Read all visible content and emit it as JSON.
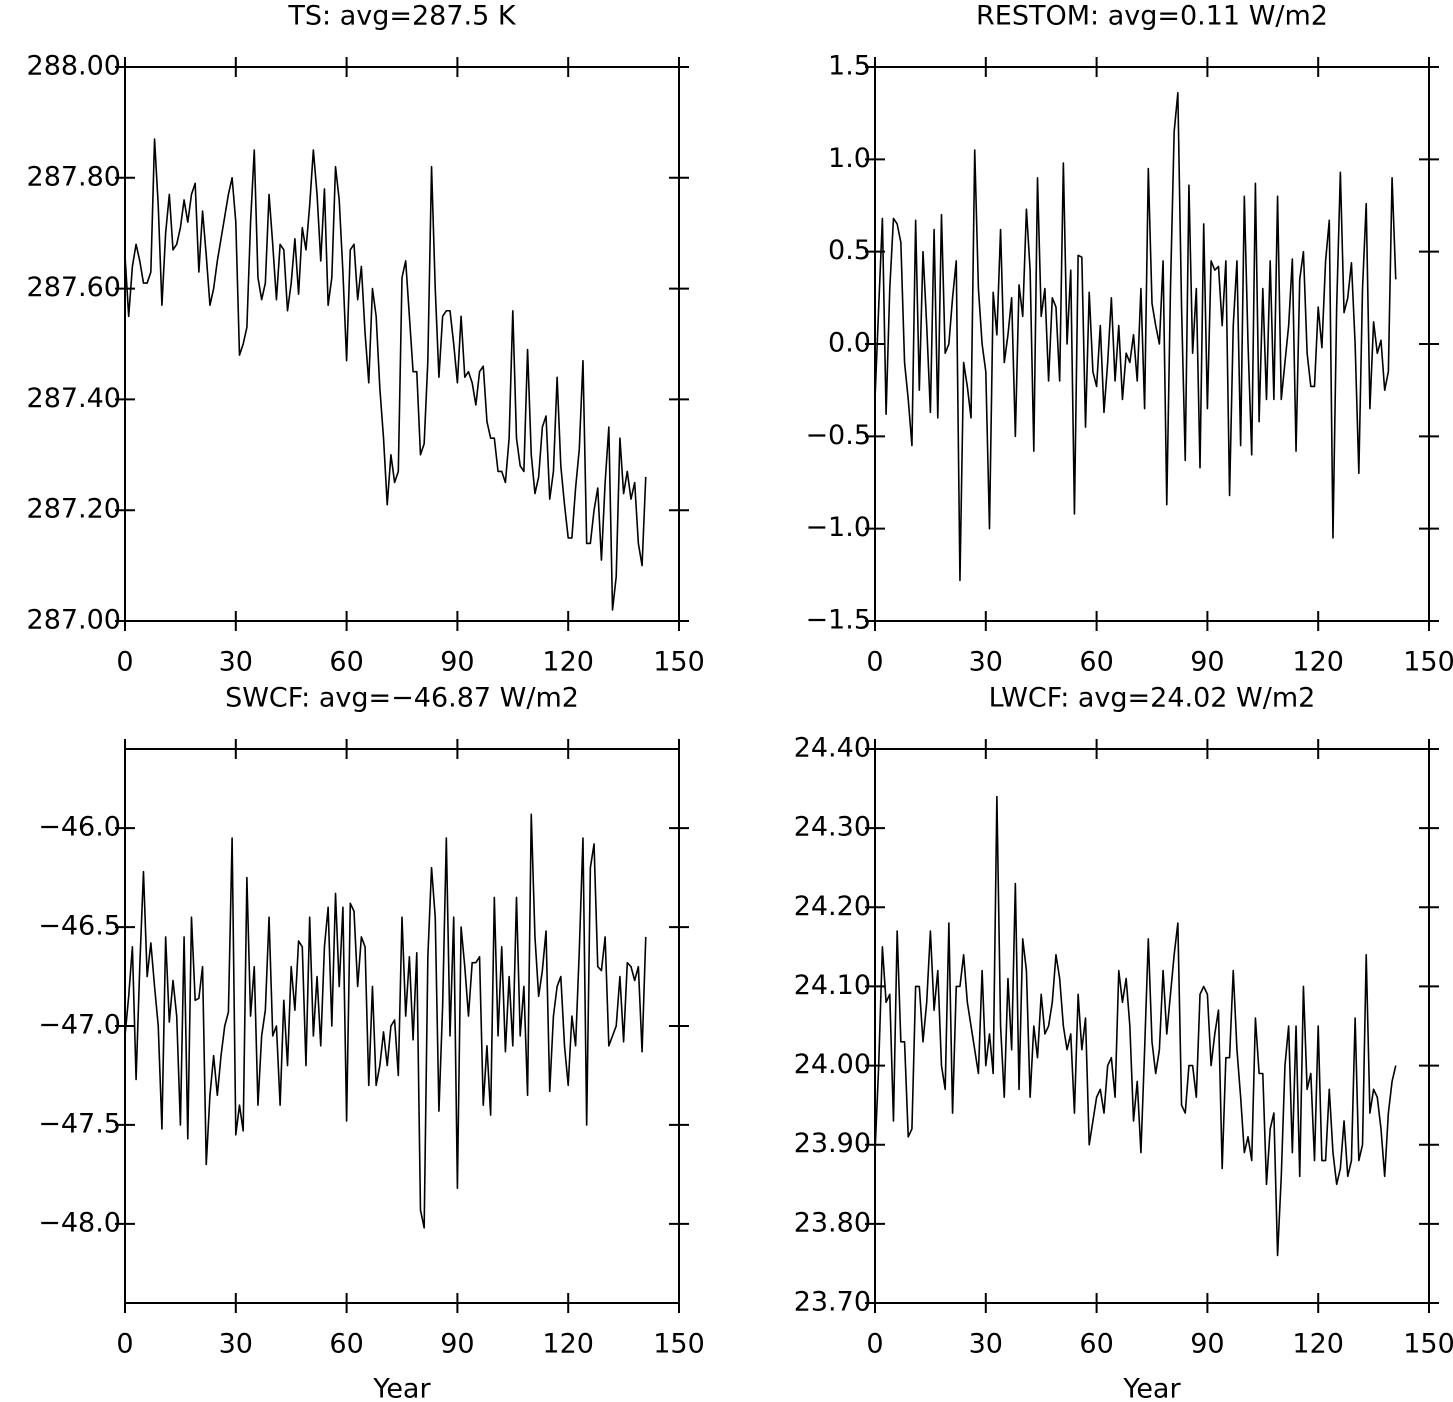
{
  "chart_data": [
    {
      "type": "line",
      "title": "TS: avg=287.5 K",
      "color": "#000000",
      "x": [
        0,
        1,
        2,
        3,
        4,
        5,
        6,
        7,
        8,
        9,
        10,
        11,
        12,
        13,
        14,
        15,
        16,
        17,
        18,
        19,
        20,
        21,
        22,
        23,
        24,
        25,
        26,
        27,
        28,
        29,
        30,
        31,
        32,
        33,
        34,
        35,
        36,
        37,
        38,
        39,
        40,
        41,
        42,
        43,
        44,
        45,
        46,
        47,
        48,
        49,
        50,
        51,
        52,
        53,
        54,
        55,
        56,
        57,
        58,
        59,
        60,
        61,
        62,
        63,
        64,
        65,
        66,
        67,
        68,
        69,
        70,
        71,
        72,
        73,
        74,
        75,
        76,
        77,
        78,
        79,
        80,
        81,
        82,
        83,
        84,
        85,
        86,
        87,
        88,
        89,
        90,
        91,
        92,
        93,
        94,
        95,
        96,
        97,
        98,
        99,
        100,
        101,
        102,
        103,
        104,
        105,
        106,
        107,
        108,
        109,
        110,
        111,
        112,
        113,
        114,
        115,
        116,
        117,
        118,
        119,
        120,
        121,
        122,
        123,
        124,
        125,
        126,
        127,
        128,
        129,
        130,
        131,
        132,
        133,
        134,
        135,
        136,
        137,
        138,
        139,
        140,
        141
      ],
      "values": [
        287.66,
        287.55,
        287.64,
        287.68,
        287.65,
        287.61,
        287.61,
        287.63,
        287.87,
        287.75,
        287.57,
        287.7,
        287.77,
        287.67,
        287.68,
        287.71,
        287.76,
        287.72,
        287.77,
        287.79,
        287.63,
        287.74,
        287.66,
        287.57,
        287.6,
        287.65,
        287.69,
        287.73,
        287.77,
        287.8,
        287.72,
        287.48,
        287.5,
        287.53,
        287.72,
        287.85,
        287.62,
        287.58,
        287.61,
        287.77,
        287.68,
        287.58,
        287.68,
        287.67,
        287.56,
        287.61,
        287.69,
        287.59,
        287.71,
        287.67,
        287.75,
        287.85,
        287.77,
        287.65,
        287.78,
        287.57,
        287.62,
        287.82,
        287.76,
        287.63,
        287.47,
        287.67,
        287.68,
        287.58,
        287.64,
        287.52,
        287.43,
        287.6,
        287.55,
        287.42,
        287.33,
        287.21,
        287.3,
        287.25,
        287.27,
        287.62,
        287.65,
        287.55,
        287.45,
        287.45,
        287.3,
        287.32,
        287.47,
        287.82,
        287.6,
        287.44,
        287.55,
        287.56,
        287.56,
        287.5,
        287.43,
        287.55,
        287.44,
        287.45,
        287.43,
        287.39,
        287.45,
        287.46,
        287.36,
        287.33,
        287.33,
        287.27,
        287.27,
        287.25,
        287.33,
        287.56,
        287.33,
        287.28,
        287.27,
        287.49,
        287.3,
        287.23,
        287.26,
        287.35,
        287.37,
        287.22,
        287.27,
        287.44,
        287.28,
        287.21,
        287.15,
        287.15,
        287.24,
        287.31,
        287.47,
        287.14,
        287.14,
        287.2,
        287.24,
        287.11,
        287.25,
        287.35,
        287.02,
        287.08,
        287.33,
        287.23,
        287.27,
        287.22,
        287.25,
        287.14,
        287.1,
        287.26
      ],
      "xlim": [
        0,
        150
      ],
      "xticks": [
        0,
        30,
        60,
        90,
        120,
        150
      ],
      "ylim": [
        287,
        288
      ],
      "yticks": [
        {
          "value": 287,
          "label": "287.00"
        },
        {
          "value": 287.2,
          "label": "287.20"
        },
        {
          "value": 287.4,
          "label": "287.40"
        },
        {
          "value": 287.6,
          "label": "287.60"
        },
        {
          "value": 287.8,
          "label": "287.80"
        },
        {
          "value": 288,
          "label": "288.00"
        }
      ]
    },
    {
      "type": "line",
      "title": "RESTOM: avg=0.11 W/m2",
      "color": "#000000",
      "x": [
        0,
        1,
        2,
        3,
        4,
        5,
        6,
        7,
        8,
        9,
        10,
        11,
        12,
        13,
        14,
        15,
        16,
        17,
        18,
        19,
        20,
        21,
        22,
        23,
        24,
        25,
        26,
        27,
        28,
        29,
        30,
        31,
        32,
        33,
        34,
        35,
        36,
        37,
        38,
        39,
        40,
        41,
        42,
        43,
        44,
        45,
        46,
        47,
        48,
        49,
        50,
        51,
        52,
        53,
        54,
        55,
        56,
        57,
        58,
        59,
        60,
        61,
        62,
        63,
        64,
        65,
        66,
        67,
        68,
        69,
        70,
        71,
        72,
        73,
        74,
        75,
        76,
        77,
        78,
        79,
        80,
        81,
        82,
        83,
        84,
        85,
        86,
        87,
        88,
        89,
        90,
        91,
        92,
        93,
        94,
        95,
        96,
        97,
        98,
        99,
        100,
        101,
        102,
        103,
        104,
        105,
        106,
        107,
        108,
        109,
        110,
        111,
        112,
        113,
        114,
        115,
        116,
        117,
        118,
        119,
        120,
        121,
        122,
        123,
        124,
        125,
        126,
        127,
        128,
        129,
        130,
        131,
        132,
        133,
        134,
        135,
        136,
        137,
        138,
        139,
        140,
        141
      ],
      "values": [
        -0.3,
        0.2,
        0.68,
        -0.38,
        0.3,
        0.68,
        0.65,
        0.55,
        -0.1,
        -0.3,
        -0.55,
        0.67,
        -0.25,
        0.5,
        0.1,
        -0.37,
        0.62,
        -0.4,
        0.7,
        -0.05,
        0.0,
        0.25,
        0.45,
        -1.28,
        -0.1,
        -0.23,
        -0.4,
        1.05,
        0.3,
        0.0,
        -0.15,
        -1.0,
        0.28,
        0.05,
        0.62,
        -0.1,
        0.05,
        0.25,
        -0.5,
        0.32,
        0.15,
        0.73,
        0.4,
        -0.58,
        0.9,
        0.15,
        0.3,
        -0.2,
        0.25,
        0.2,
        -0.2,
        0.98,
        0.0,
        0.4,
        -0.92,
        0.48,
        0.47,
        -0.45,
        0.28,
        -0.15,
        -0.23,
        0.1,
        -0.37,
        -0.1,
        0.25,
        -0.2,
        0.1,
        -0.3,
        -0.05,
        -0.1,
        0.05,
        -0.2,
        0.3,
        -0.35,
        0.95,
        0.22,
        0.1,
        0.0,
        0.45,
        -0.87,
        0.3,
        1.15,
        1.36,
        0.2,
        -0.63,
        0.86,
        -0.05,
        0.3,
        -0.67,
        0.65,
        -0.35,
        0.45,
        0.4,
        0.42,
        0.1,
        0.45,
        -0.82,
        0.1,
        0.45,
        -0.55,
        0.8,
        0.0,
        -0.6,
        0.87,
        -0.42,
        0.3,
        -0.3,
        0.45,
        -0.3,
        0.8,
        -0.3,
        -0.1,
        0.1,
        0.46,
        -0.58,
        0.35,
        0.5,
        -0.05,
        -0.23,
        -0.23,
        0.2,
        -0.02,
        0.45,
        0.67,
        -1.05,
        0.2,
        0.93,
        0.17,
        0.25,
        0.44,
        0.0,
        -0.7,
        0.3,
        0.76,
        -0.35,
        0.12,
        -0.05,
        0.02,
        -0.25,
        -0.15,
        0.9,
        0.35
      ],
      "xlim": [
        0,
        150
      ],
      "xticks": [
        0,
        30,
        60,
        90,
        120,
        150
      ],
      "ylim": [
        -1.5,
        1.5
      ],
      "yticks": [
        {
          "value": -1.5,
          "label": "−1.5"
        },
        {
          "value": -1,
          "label": "−1.0"
        },
        {
          "value": -0.5,
          "label": "−0.5"
        },
        {
          "value": 0,
          "label": "0.0"
        },
        0.5,
        {
          "value": 1,
          "label": "1.0"
        },
        1.5
      ]
    },
    {
      "type": "line",
      "title": "SWCF: avg=−46.87 W/m2",
      "x_label": "Year",
      "color": "#000000",
      "x": [
        0,
        1,
        2,
        3,
        4,
        5,
        6,
        7,
        8,
        9,
        10,
        11,
        12,
        13,
        14,
        15,
        16,
        17,
        18,
        19,
        20,
        21,
        22,
        23,
        24,
        25,
        26,
        27,
        28,
        29,
        30,
        31,
        32,
        33,
        34,
        35,
        36,
        37,
        38,
        39,
        40,
        41,
        42,
        43,
        44,
        45,
        46,
        47,
        48,
        49,
        50,
        51,
        52,
        53,
        54,
        55,
        56,
        57,
        58,
        59,
        60,
        61,
        62,
        63,
        64,
        65,
        66,
        67,
        68,
        69,
        70,
        71,
        72,
        73,
        74,
        75,
        76,
        77,
        78,
        79,
        80,
        81,
        82,
        83,
        84,
        85,
        86,
        87,
        88,
        89,
        90,
        91,
        92,
        93,
        94,
        95,
        96,
        97,
        98,
        99,
        100,
        101,
        102,
        103,
        104,
        105,
        106,
        107,
        108,
        109,
        110,
        111,
        112,
        113,
        114,
        115,
        116,
        117,
        118,
        119,
        120,
        121,
        122,
        123,
        124,
        125,
        126,
        127,
        128,
        129,
        130,
        131,
        132,
        133,
        134,
        135,
        136,
        137,
        138,
        139,
        140,
        141
      ],
      "values": [
        -47.05,
        -46.85,
        -46.6,
        -47.27,
        -46.7,
        -46.22,
        -46.75,
        -46.58,
        -46.8,
        -47.0,
        -47.52,
        -46.55,
        -46.98,
        -46.77,
        -46.95,
        -47.5,
        -46.55,
        -47.57,
        -46.45,
        -46.87,
        -46.86,
        -46.7,
        -47.7,
        -47.35,
        -47.15,
        -47.35,
        -47.15,
        -47.0,
        -46.93,
        -46.05,
        -47.55,
        -47.4,
        -47.53,
        -46.25,
        -46.95,
        -46.7,
        -47.4,
        -47.05,
        -46.92,
        -46.45,
        -47.05,
        -47.0,
        -47.4,
        -46.87,
        -47.2,
        -46.7,
        -46.92,
        -46.57,
        -46.6,
        -47.2,
        -46.45,
        -47.05,
        -46.75,
        -47.1,
        -46.6,
        -46.4,
        -47.0,
        -46.33,
        -46.8,
        -46.4,
        -47.48,
        -46.38,
        -46.42,
        -46.8,
        -46.55,
        -46.6,
        -47.3,
        -46.8,
        -47.3,
        -47.2,
        -47.03,
        -47.2,
        -47.0,
        -46.97,
        -47.25,
        -46.45,
        -46.95,
        -46.65,
        -47.07,
        -46.63,
        -47.93,
        -48.02,
        -46.65,
        -46.2,
        -46.45,
        -47.43,
        -46.9,
        -46.05,
        -47.05,
        -46.45,
        -47.82,
        -46.5,
        -46.7,
        -46.95,
        -46.68,
        -46.68,
        -46.65,
        -47.4,
        -47.1,
        -47.45,
        -46.35,
        -47.05,
        -46.6,
        -47.13,
        -46.75,
        -47.1,
        -46.35,
        -47.05,
        -46.8,
        -47.35,
        -45.93,
        -46.55,
        -46.85,
        -46.72,
        -46.52,
        -47.33,
        -46.95,
        -46.8,
        -46.75,
        -47.1,
        -47.3,
        -46.95,
        -47.1,
        -46.62,
        -46.05,
        -47.5,
        -46.2,
        -46.08,
        -46.7,
        -46.72,
        -46.55,
        -47.1,
        -47.05,
        -47.0,
        -46.75,
        -47.08,
        -46.68,
        -46.7,
        -46.77,
        -46.7,
        -47.13,
        -46.55
      ],
      "xlim": [
        0,
        150
      ],
      "xticks": [
        0,
        30,
        60,
        90,
        120,
        150
      ],
      "ylim": [
        -48.4,
        -45.6
      ],
      "yticks": [
        {
          "value": -48,
          "label": "−48.0"
        },
        {
          "value": -47.5,
          "label": "−47.5"
        },
        {
          "value": -47,
          "label": "−47.0"
        },
        {
          "value": -46.5,
          "label": "−46.5"
        },
        {
          "value": -46,
          "label": "−46.0"
        }
      ]
    },
    {
      "type": "line",
      "title": "LWCF: avg=24.02 W/m2",
      "x_label": "Year",
      "color": "#000000",
      "x": [
        0,
        1,
        2,
        3,
        4,
        5,
        6,
        7,
        8,
        9,
        10,
        11,
        12,
        13,
        14,
        15,
        16,
        17,
        18,
        19,
        20,
        21,
        22,
        23,
        24,
        25,
        26,
        27,
        28,
        29,
        30,
        31,
        32,
        33,
        34,
        35,
        36,
        37,
        38,
        39,
        40,
        41,
        42,
        43,
        44,
        45,
        46,
        47,
        48,
        49,
        50,
        51,
        52,
        53,
        54,
        55,
        56,
        57,
        58,
        59,
        60,
        61,
        62,
        63,
        64,
        65,
        66,
        67,
        68,
        69,
        70,
        71,
        72,
        73,
        74,
        75,
        76,
        77,
        78,
        79,
        80,
        81,
        82,
        83,
        84,
        85,
        86,
        87,
        88,
        89,
        90,
        91,
        92,
        93,
        94,
        95,
        96,
        97,
        98,
        99,
        100,
        101,
        102,
        103,
        104,
        105,
        106,
        107,
        108,
        109,
        110,
        111,
        112,
        113,
        114,
        115,
        116,
        117,
        118,
        119,
        120,
        121,
        122,
        123,
        124,
        125,
        126,
        127,
        128,
        129,
        130,
        131,
        132,
        133,
        134,
        135,
        136,
        137,
        138,
        139,
        140,
        141
      ],
      "values": [
        23.89,
        24.0,
        24.15,
        24.08,
        24.09,
        23.93,
        24.17,
        24.03,
        24.03,
        23.91,
        23.92,
        24.1,
        24.1,
        24.03,
        24.08,
        24.17,
        24.07,
        24.12,
        24.0,
        23.97,
        24.18,
        23.94,
        24.1,
        24.1,
        24.14,
        24.08,
        24.05,
        24.02,
        23.99,
        24.12,
        24.0,
        24.04,
        23.99,
        24.34,
        24.05,
        23.96,
        24.11,
        24.02,
        24.23,
        23.97,
        24.16,
        24.12,
        23.96,
        24.05,
        24.01,
        24.09,
        24.04,
        24.05,
        24.08,
        24.14,
        24.11,
        24.05,
        24.02,
        24.04,
        23.94,
        24.09,
        24.02,
        24.06,
        23.9,
        23.93,
        23.96,
        23.97,
        23.94,
        24.0,
        24.01,
        23.96,
        24.12,
        24.08,
        24.11,
        24.05,
        23.93,
        23.98,
        23.89,
        24.02,
        24.16,
        24.03,
        23.99,
        24.02,
        24.12,
        24.04,
        24.09,
        24.14,
        24.18,
        23.95,
        23.94,
        24.0,
        24.0,
        23.96,
        24.09,
        24.1,
        24.09,
        24.0,
        24.04,
        24.07,
        23.87,
        24.01,
        24.01,
        24.12,
        24.02,
        23.96,
        23.89,
        23.91,
        23.88,
        24.06,
        23.99,
        23.99,
        23.85,
        23.92,
        23.94,
        23.76,
        23.86,
        24.0,
        24.05,
        23.89,
        24.05,
        23.86,
        24.1,
        23.97,
        23.99,
        23.88,
        24.05,
        23.88,
        23.88,
        23.97,
        23.89,
        23.85,
        23.87,
        23.93,
        23.86,
        23.88,
        24.06,
        23.88,
        23.9,
        24.14,
        23.94,
        23.97,
        23.96,
        23.92,
        23.86,
        23.94,
        23.98,
        24.0
      ],
      "xlim": [
        0,
        150
      ],
      "xticks": [
        0,
        30,
        60,
        90,
        120,
        150
      ],
      "ylim": [
        23.7,
        24.4
      ],
      "yticks": [
        {
          "value": 23.7,
          "label": "23.70"
        },
        {
          "value": 23.8,
          "label": "23.80"
        },
        {
          "value": 23.9,
          "label": "23.90"
        },
        {
          "value": 24,
          "label": "24.00"
        },
        {
          "value": 24.1,
          "label": "24.10"
        },
        {
          "value": 24.2,
          "label": "24.20"
        },
        {
          "value": 24.3,
          "label": "24.30"
        },
        {
          "value": 24.4,
          "label": "24.40"
        }
      ]
    }
  ]
}
